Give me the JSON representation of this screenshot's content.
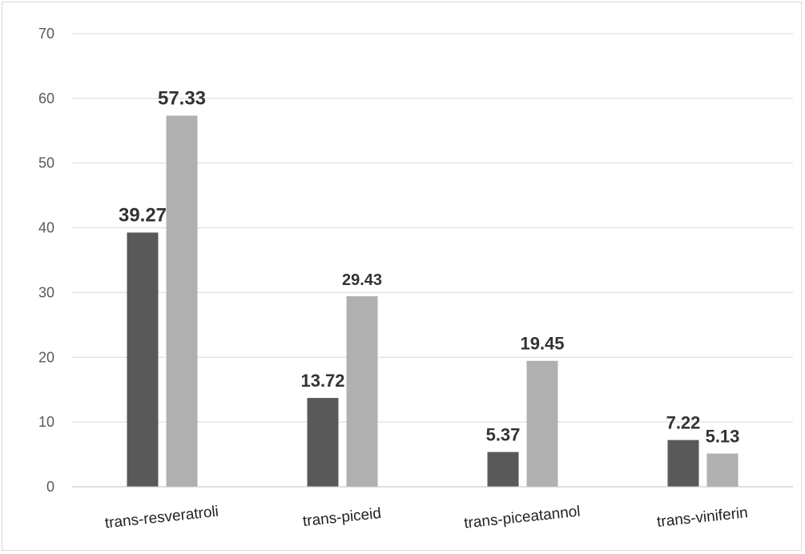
{
  "chart_data": {
    "type": "bar",
    "title": "",
    "xlabel": "",
    "ylabel": "",
    "ylim": [
      0,
      70
    ],
    "yticks": [
      0,
      10,
      20,
      30,
      40,
      50,
      60,
      70
    ],
    "grid": true,
    "legend": "none",
    "categories": [
      "trans-resveratroli",
      "trans-piceid",
      "trans-piceatannol",
      "trans-viniferin"
    ],
    "series": [
      {
        "values": [
          39.27,
          13.72,
          5.37,
          7.22
        ],
        "color": "#595959"
      },
      {
        "values": [
          57.33,
          29.43,
          19.45,
          5.13
        ],
        "color": "#b0b0b0"
      }
    ],
    "data_labels": [
      [
        "39.27",
        "13.72",
        "5.37",
        "7.22"
      ],
      [
        "57.33",
        "29.43",
        "19.45",
        "5.13"
      ]
    ]
  }
}
